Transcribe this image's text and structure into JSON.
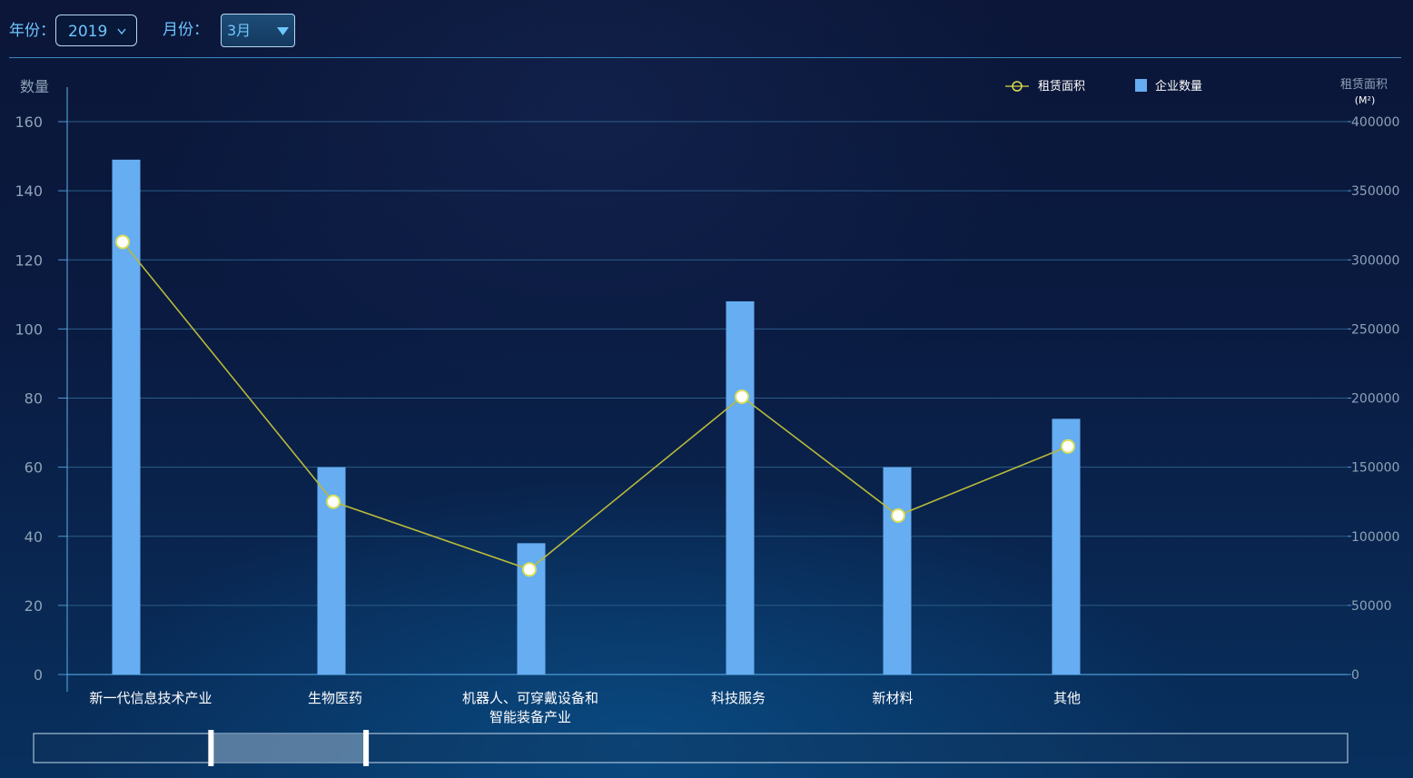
{
  "filters": {
    "year_label": "年份：",
    "year_value": "2019",
    "month_label": "月份：",
    "month_value": "3月"
  },
  "legend": {
    "line_label": "租赁面积",
    "bar_label": "企业数量"
  },
  "axes": {
    "left_title": "数量",
    "right_title": "租赁面积",
    "right_unit": "(M²)",
    "left_ticks": [
      "0",
      "20",
      "40",
      "60",
      "80",
      "100",
      "120",
      "140",
      "160"
    ],
    "right_ticks": [
      "0",
      "50000",
      "100000",
      "150000",
      "200000",
      "250000",
      "300000",
      "350000",
      "400000"
    ]
  },
  "colors": {
    "bar": "#66adf2",
    "line": "#b8b93a",
    "marker_fill": "#ffffff",
    "marker_stroke": "#d9df5a",
    "grid": "#2a5d86",
    "axis": "#4c9ad3",
    "tick_text": "#8da3b8",
    "category_text": "#ffffff"
  },
  "chart_data": {
    "type": "bar",
    "categories": [
      "新一代信息技术产业",
      "生物医药",
      "机器人、可穿戴设备和\n智能装备产业",
      "科技服务",
      "新材料",
      "其他"
    ],
    "series": [
      {
        "name": "企业数量",
        "type": "bar",
        "axis": "left",
        "values": [
          149,
          60,
          38,
          108,
          60,
          74
        ]
      },
      {
        "name": "租赁面积",
        "type": "line",
        "axis": "right",
        "values": [
          313000,
          125000,
          76000,
          201000,
          115000,
          165000
        ]
      }
    ],
    "xlabel": "",
    "ylabel": "数量",
    "y2label": "租赁面积 (M²)",
    "ylim": [
      0,
      160
    ],
    "y2lim": [
      0,
      400000
    ],
    "grid": true,
    "legend": "top-right"
  },
  "zoom": {
    "start": 0.135,
    "end": 0.253
  }
}
